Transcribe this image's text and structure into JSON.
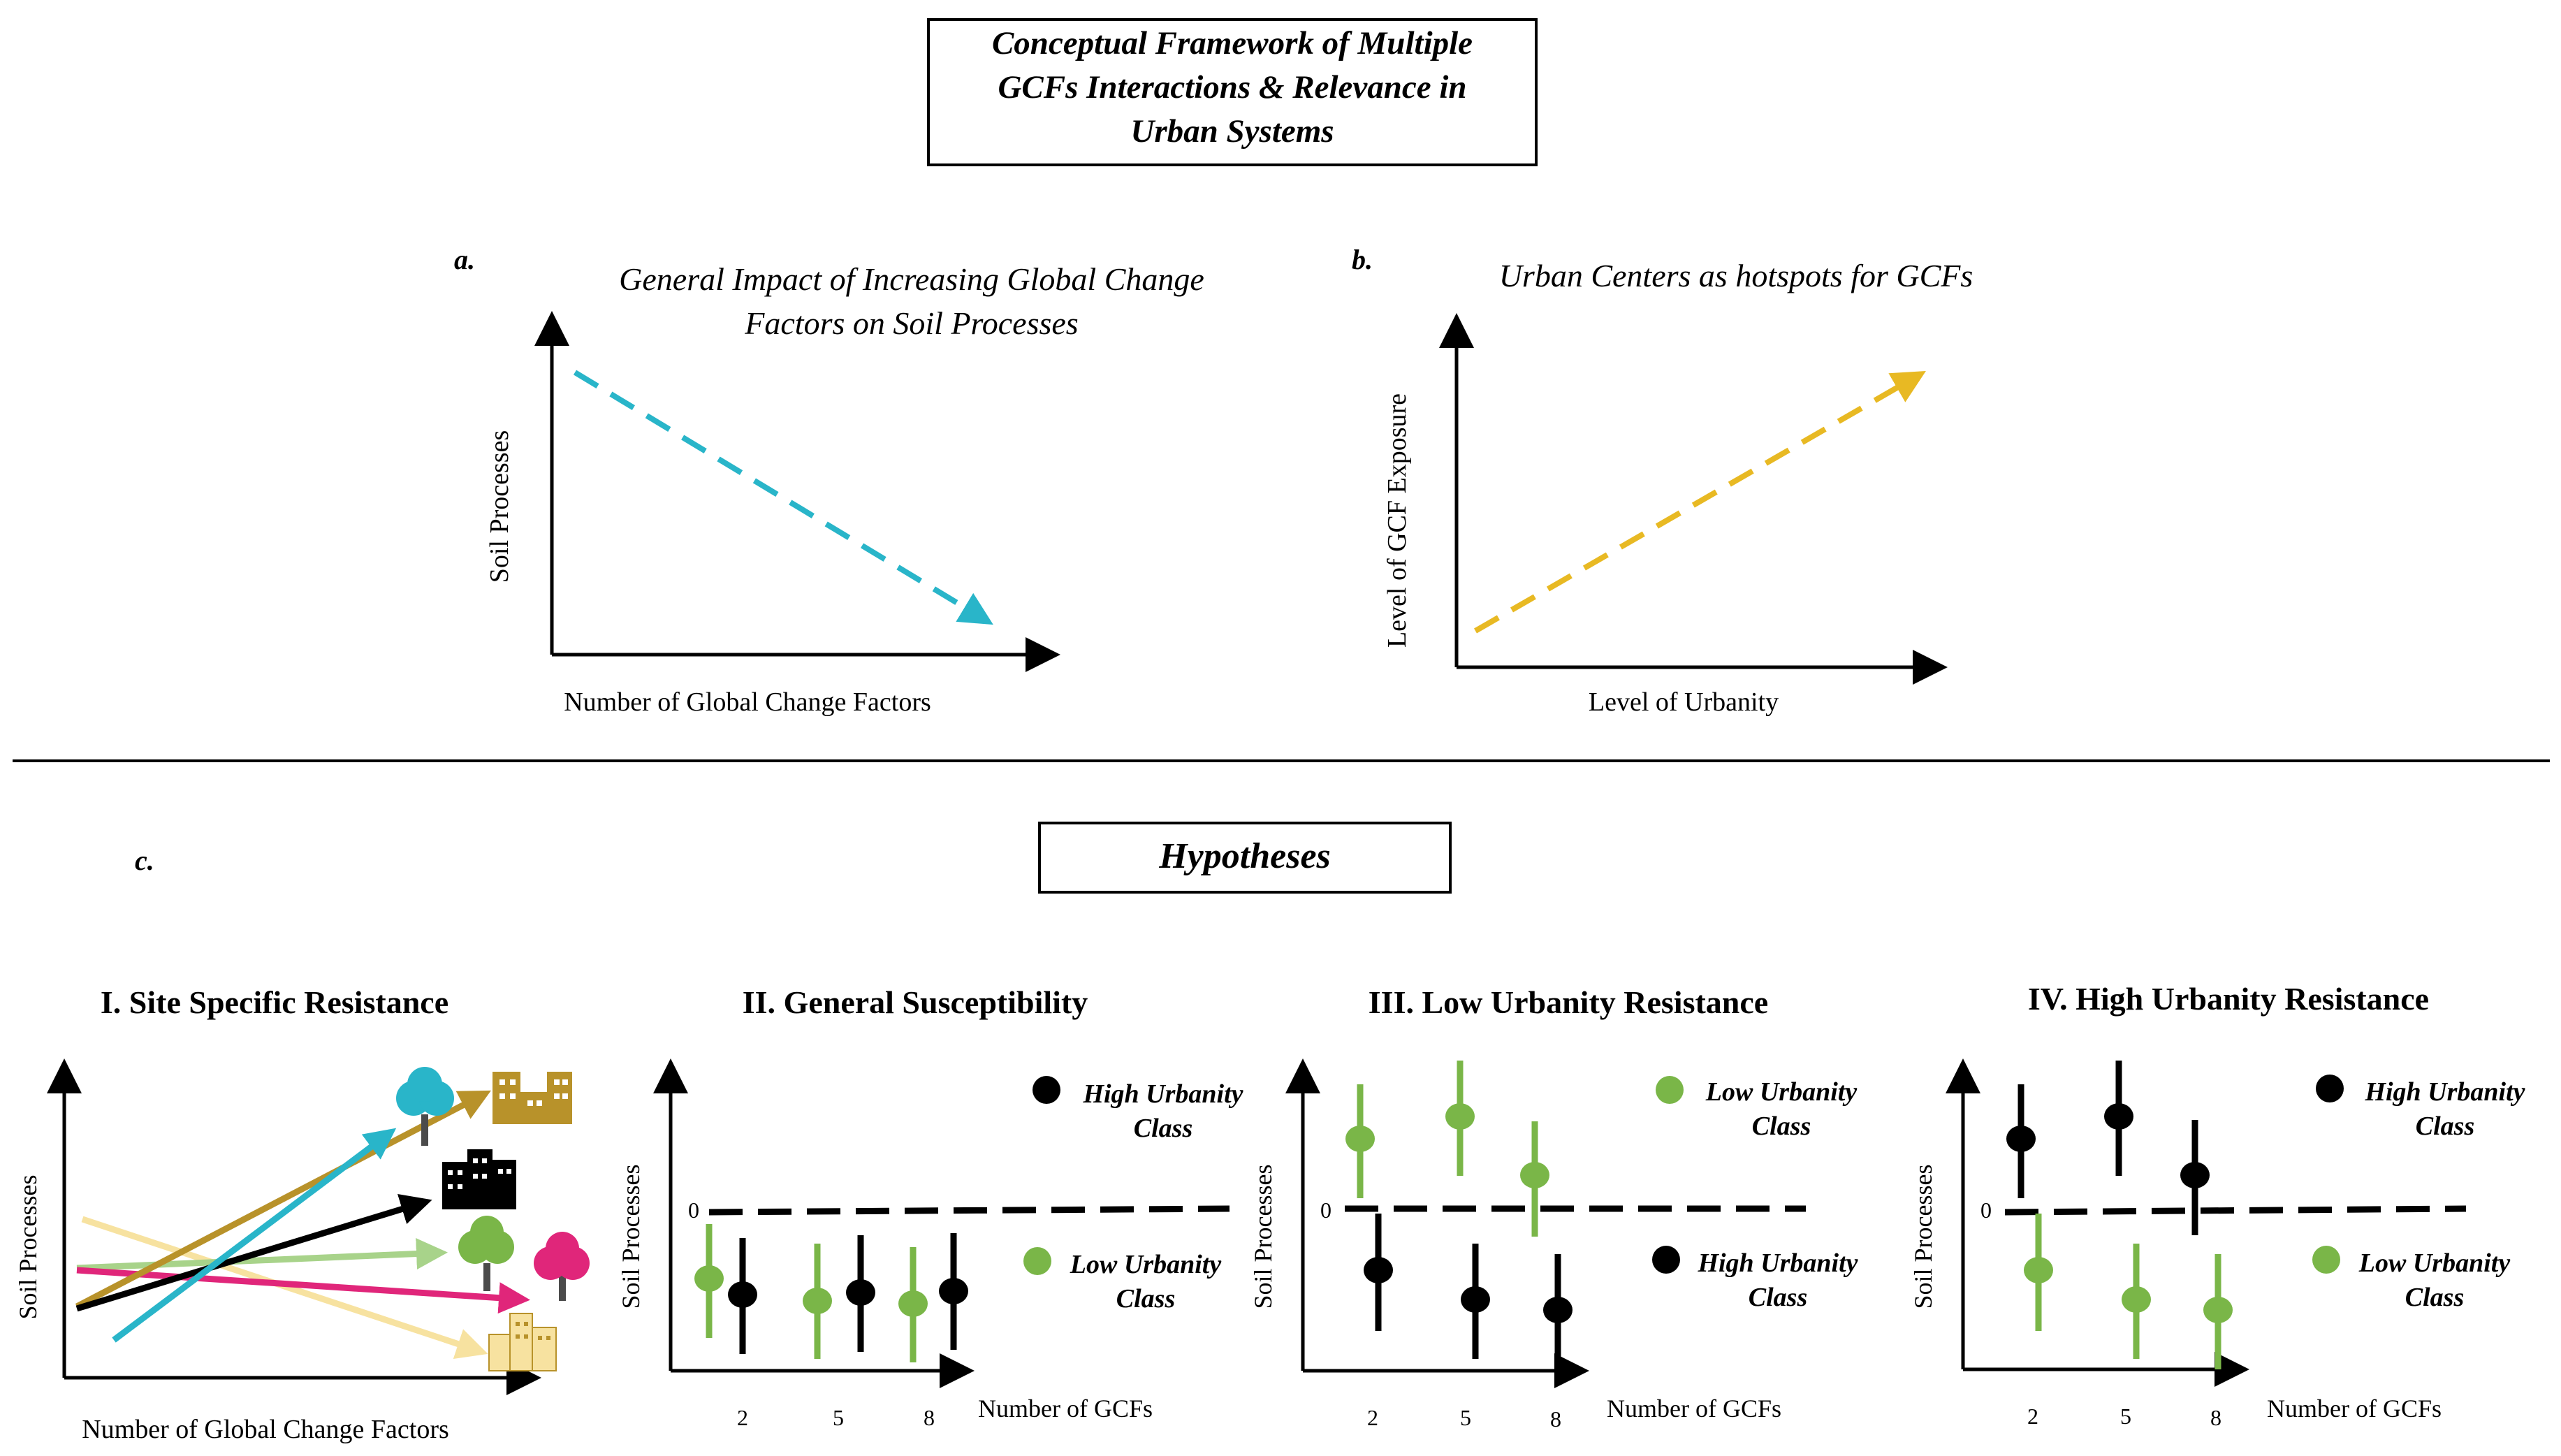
{
  "title_box": {
    "lines": [
      "Conceptual Framework of Multiple",
      "GCFs Interactions & Relevance in",
      "Urban Systems"
    ]
  },
  "panel_a": {
    "letter": "a.",
    "title_lines": [
      "General Impact of Increasing Global Change",
      "Factors on Soil Processes"
    ],
    "ylabel": "Soil Processes",
    "xlabel": "Number of Global Change Factors",
    "arrow_color": "#29b5c9",
    "trend": "decreasing"
  },
  "panel_b": {
    "letter": "b.",
    "title": "Urban Centers as hotspots for GCFs",
    "ylabel": "Level of GCF Exposure",
    "xlabel": "Level of Urbanity",
    "arrow_color": "#e8b923",
    "trend": "increasing"
  },
  "panel_c": {
    "letter": "c.",
    "header": "Hypotheses"
  },
  "colors": {
    "green": "#7ab648",
    "black": "#000000",
    "teal": "#29b5c9",
    "gold": "#b8922a",
    "magenta": "#e0267a",
    "light_green": "#a8d38a",
    "light_yellow": "#f7e2a0"
  },
  "hypotheses": [
    {
      "title": "I.  Site Specific Resistance",
      "ylabel": "Soil Processes",
      "xlabel": "Number of Global Change Factors",
      "lines": [
        {
          "color": "teal",
          "icon": "tree-teal-icon"
        },
        {
          "color": "gold",
          "icon": "buildings-gold-icon"
        },
        {
          "color": "black",
          "icon": "buildings-black-icon"
        },
        {
          "color": "light_green",
          "icon": "tree-green-icon"
        },
        {
          "color": "magenta",
          "icon": "tree-magenta-icon"
        },
        {
          "color": "light_yellow",
          "icon": "buildings-yellow-icon"
        }
      ]
    },
    {
      "title": "II.  General Susceptibility",
      "ylabel": "Soil Processes",
      "xlabel": "Number of GCFs",
      "zero": "0",
      "x_ticks": [
        "2",
        "5",
        "8"
      ],
      "legend": [
        {
          "label": [
            "High Urbanity",
            "Class"
          ],
          "color": "black"
        },
        {
          "label": [
            "Low Urbanity",
            "Class"
          ],
          "color": "green"
        }
      ]
    },
    {
      "title": "III. Low Urbanity Resistance",
      "ylabel": "Soil Processes",
      "xlabel": "Number of GCFs",
      "zero": "0",
      "x_ticks": [
        "2",
        "5",
        "8"
      ],
      "legend": [
        {
          "label": [
            "Low Urbanity",
            "Class"
          ],
          "color": "green"
        },
        {
          "label": [
            "High Urbanity",
            "Class"
          ],
          "color": "black"
        }
      ]
    },
    {
      "title": "IV.  High Urbanity Resistance",
      "ylabel": "Soil Processes",
      "xlabel": "Number of GCFs",
      "zero": "0",
      "x_ticks": [
        "2",
        "5",
        "8"
      ],
      "legend": [
        {
          "label": [
            "High Urbanity",
            "Class"
          ],
          "color": "black"
        },
        {
          "label": [
            "Low Urbanity",
            "Class"
          ],
          "color": "green"
        }
      ]
    }
  ]
}
